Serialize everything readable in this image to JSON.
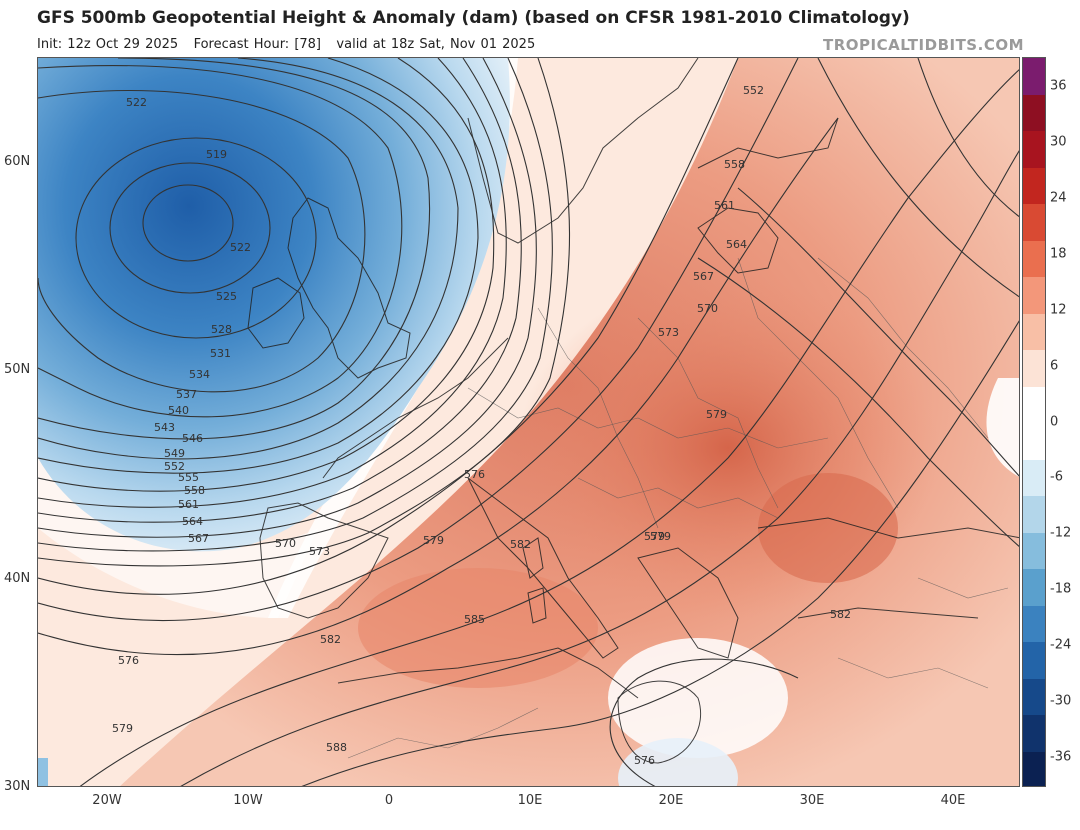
{
  "header": {
    "title": "GFS 500mb Geopotential Height & Anomaly (dam) (based on CFSR 1981-2010 Climatology)",
    "init": "Init: 12z Oct 29 2025",
    "forecast_hour": "Forecast Hour: [78]",
    "valid": "valid at 18z Sat, Nov 01 2025",
    "brand": "TROPICALTIDBITS.COM"
  },
  "axes": {
    "lat_labels": [
      "60N",
      "50N",
      "40N",
      "30N"
    ],
    "lon_labels": [
      "20W",
      "10W",
      "0",
      "10E",
      "20E",
      "30E",
      "40E"
    ]
  },
  "colorbar": {
    "labels": [
      "36",
      "30",
      "24",
      "18",
      "12",
      "6",
      "0",
      "-6",
      "-12",
      "-18",
      "-24",
      "-30",
      "-36"
    ],
    "colors": [
      "#7b1c6e",
      "#8e0f22",
      "#a8141f",
      "#c2261f",
      "#d94a33",
      "#ea6f4f",
      "#f3977a",
      "#f8bfa6",
      "#fce3d6",
      "#ffffff",
      "#ffffff",
      "#d9ecf6",
      "#b3d6ea",
      "#86bddd",
      "#5aa0cd",
      "#3b82bf",
      "#2364a8",
      "#16498a",
      "#10336c",
      "#0b2152"
    ]
  },
  "contours": [
    {
      "label": "519"
    },
    {
      "label": "522"
    },
    {
      "label": "525"
    },
    {
      "label": "528"
    },
    {
      "label": "531"
    },
    {
      "label": "534"
    },
    {
      "label": "537"
    },
    {
      "label": "540"
    },
    {
      "label": "543"
    },
    {
      "label": "546"
    },
    {
      "label": "549"
    },
    {
      "label": "552"
    },
    {
      "label": "555"
    },
    {
      "label": "558"
    },
    {
      "label": "561"
    },
    {
      "label": "564"
    },
    {
      "label": "567"
    },
    {
      "label": "570"
    },
    {
      "label": "573"
    },
    {
      "label": "576"
    },
    {
      "label": "579"
    },
    {
      "label": "582"
    },
    {
      "label": "585"
    },
    {
      "label": "588"
    }
  ],
  "map_labels": {
    "l1": "522",
    "l2": "519",
    "l3": "522",
    "l4": "525",
    "l5": "528",
    "l6": "531",
    "l7": "534",
    "l8": "537",
    "l9": "540",
    "l10": "543",
    "l11": "546",
    "l12": "549",
    "l13": "552",
    "l14": "555",
    "l15": "558",
    "l16": "561",
    "l17": "564",
    "l18": "567",
    "l19": "570",
    "l20": "573",
    "l21": "576",
    "l22": "579",
    "l23": "582",
    "l24": "585",
    "l25": "588",
    "l26": "576",
    "l27": "579",
    "l28": "582",
    "l29": "576",
    "l30": "579",
    "l31": "582",
    "l32": "552",
    "l33": "558",
    "l34": "561",
    "l35": "564",
    "l36": "567",
    "l37": "570",
    "l38": "573",
    "l39": "579",
    "l40": "579",
    "l41": "576"
  }
}
